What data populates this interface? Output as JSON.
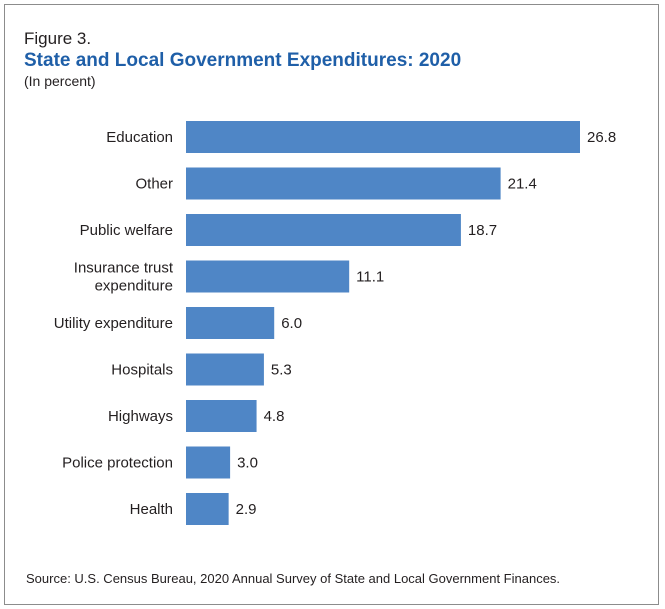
{
  "figure_label": "Figure 3.",
  "source": "Source: U.S. Census Bureau, 2020 Annual Survey of State and Local Government Finances.",
  "chart_data": {
    "type": "bar",
    "orientation": "horizontal",
    "title": "State and Local Government Expenditures: 2020",
    "subtitle": "(In percent)",
    "categories": [
      [
        "Education"
      ],
      [
        "Other"
      ],
      [
        "Public welfare"
      ],
      [
        "Insurance trust",
        "expenditure"
      ],
      [
        "Utility expenditure"
      ],
      [
        "Hospitals"
      ],
      [
        "Highways"
      ],
      [
        "Police protection"
      ],
      [
        "Health"
      ]
    ],
    "values": [
      26.8,
      21.4,
      18.7,
      11.1,
      6.0,
      5.3,
      4.8,
      3.0,
      2.9
    ],
    "value_labels": [
      "26.8",
      "21.4",
      "18.7",
      "11.1",
      "6.0",
      "5.3",
      "4.8",
      "3.0",
      "2.9"
    ],
    "xlim": [
      0,
      26.8
    ],
    "grid": false,
    "legend": "none",
    "bar_color": "#4f86c6"
  }
}
